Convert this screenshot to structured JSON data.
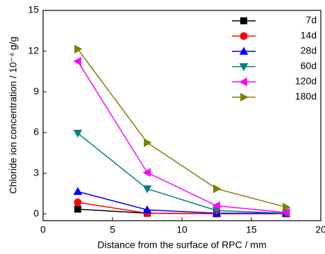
{
  "chart_data": {
    "type": "line",
    "xlabel": "Distance from the surface of RPC / mm",
    "ylabel": "Chloride ion concentration / 10⁻⁴ g/g",
    "x": [
      2.5,
      7.5,
      12.5,
      17.5
    ],
    "series": [
      {
        "name": "7d",
        "color": "#000000",
        "marker": "square",
        "values": [
          0.35,
          0.05,
          0.02,
          0.02
        ]
      },
      {
        "name": "14d",
        "color": "#ff0000",
        "marker": "circle",
        "values": [
          0.85,
          0.05,
          0.02,
          0.02
        ]
      },
      {
        "name": "28d",
        "color": "#0000ff",
        "marker": "triangle-up",
        "values": [
          1.65,
          0.3,
          0.05,
          0.05
        ]
      },
      {
        "name": "60d",
        "color": "#008080",
        "marker": "triangle-down",
        "values": [
          5.95,
          1.85,
          0.25,
          0.05
        ]
      },
      {
        "name": "120d",
        "color": "#ff00ff",
        "marker": "triangle-left",
        "values": [
          11.25,
          3.05,
          0.6,
          0.1
        ]
      },
      {
        "name": "180d",
        "color": "#808000",
        "marker": "triangle-right",
        "values": [
          12.15,
          5.25,
          1.85,
          0.5
        ]
      }
    ],
    "xlim": [
      0,
      20
    ],
    "xticks": [
      0,
      5,
      10,
      15,
      20
    ],
    "ylim": [
      -0.5,
      15
    ],
    "yticks": [
      0,
      3,
      6,
      9,
      12,
      15
    ],
    "legend": "upper right"
  }
}
